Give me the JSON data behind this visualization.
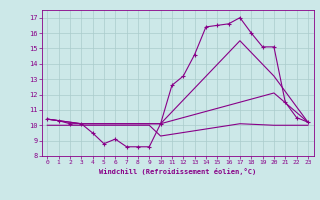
{
  "xlabel": "Windchill (Refroidissement éolien,°C)",
  "bg_color": "#cce8e8",
  "grid_color": "#aacccc",
  "line_color": "#880088",
  "xlim": [
    -0.5,
    23.5
  ],
  "ylim": [
    8,
    17.5
  ],
  "xticks": [
    0,
    1,
    2,
    3,
    4,
    5,
    6,
    7,
    8,
    9,
    10,
    11,
    12,
    13,
    14,
    15,
    16,
    17,
    18,
    19,
    20,
    21,
    22,
    23
  ],
  "yticks": [
    8,
    9,
    10,
    11,
    12,
    13,
    14,
    15,
    16,
    17
  ],
  "series": [
    {
      "x": [
        0,
        1,
        2,
        3,
        4,
        5,
        6,
        7,
        8,
        9,
        10,
        11,
        12,
        13,
        14,
        15,
        16,
        17,
        18,
        19,
        20,
        21,
        22,
        23
      ],
      "y": [
        10.4,
        10.3,
        10.1,
        10.1,
        9.5,
        8.8,
        9.1,
        8.6,
        8.6,
        8.6,
        10.1,
        12.6,
        13.2,
        14.6,
        16.4,
        16.5,
        16.6,
        17.0,
        16.0,
        15.1,
        15.1,
        11.5,
        10.5,
        10.2
      ],
      "marker": "+"
    },
    {
      "x": [
        0,
        3,
        10,
        17,
        20,
        23
      ],
      "y": [
        10.4,
        10.1,
        10.1,
        15.5,
        13.2,
        10.2
      ],
      "marker": ""
    },
    {
      "x": [
        0,
        3,
        10,
        17,
        20,
        23
      ],
      "y": [
        10.4,
        10.1,
        10.1,
        11.5,
        12.1,
        10.2
      ],
      "marker": ""
    },
    {
      "x": [
        0,
        9,
        10,
        17,
        20,
        23
      ],
      "y": [
        10.0,
        10.0,
        9.3,
        10.1,
        10.0,
        10.0
      ],
      "marker": ""
    }
  ]
}
